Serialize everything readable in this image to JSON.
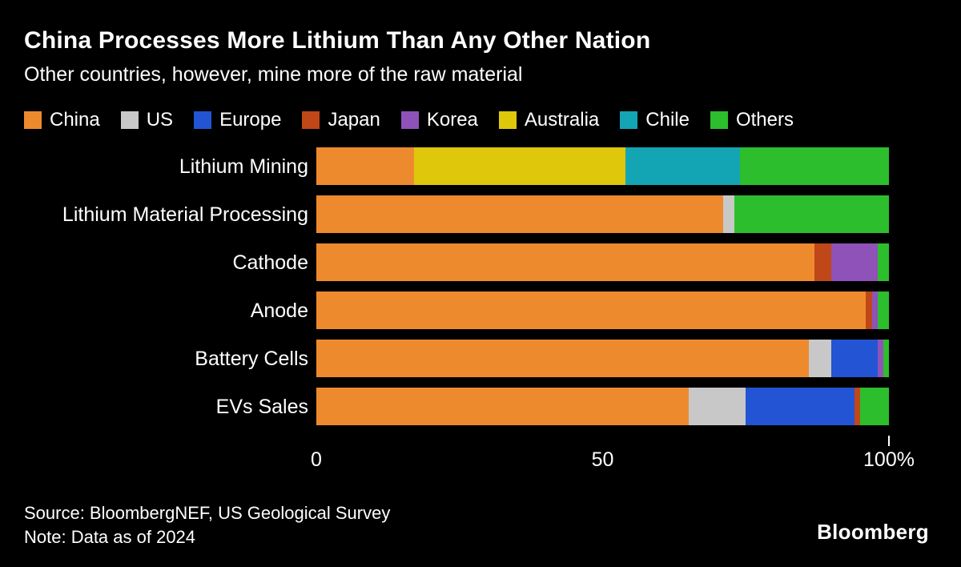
{
  "header": {
    "title": "China Processes More Lithium Than Any Other Nation",
    "subtitle": "Other countries, however, mine more of the raw material"
  },
  "footer": {
    "source": "Source: BloombergNEF, US Geological Survey",
    "note": "Note: Data as of 2024",
    "brand": "Bloomberg"
  },
  "chart_data": {
    "type": "bar",
    "orientation": "horizontal",
    "stacked": true,
    "unit": "percent",
    "xlim": [
      0,
      100
    ],
    "legend_position": "top",
    "grid": false,
    "categories": [
      "Lithium Mining",
      "Lithium Material Processing",
      "Cathode",
      "Anode",
      "Battery Cells",
      "EVs Sales"
    ],
    "series": [
      {
        "name": "China",
        "color": "#EE8A2E",
        "values": [
          17,
          71,
          87,
          96,
          86,
          65
        ]
      },
      {
        "name": "US",
        "color": "#C8C8C8",
        "values": [
          0,
          2,
          0,
          0,
          4,
          10
        ]
      },
      {
        "name": "Europe",
        "color": "#2254D4",
        "values": [
          0,
          0,
          0,
          0,
          8,
          19
        ]
      },
      {
        "name": "Japan",
        "color": "#BF4718",
        "values": [
          0,
          0,
          3,
          1,
          0,
          1
        ]
      },
      {
        "name": "Korea",
        "color": "#8F52B8",
        "values": [
          0,
          0,
          8,
          1,
          1,
          0
        ]
      },
      {
        "name": "Australia",
        "color": "#DFC70B",
        "values": [
          37,
          0,
          0,
          0,
          0,
          0
        ]
      },
      {
        "name": "Chile",
        "color": "#13A5B4",
        "values": [
          20,
          0,
          0,
          0,
          0,
          0
        ]
      },
      {
        "name": "Others",
        "color": "#2CBE2C",
        "values": [
          26,
          27,
          2,
          2,
          1,
          5
        ]
      }
    ],
    "x_ticks": [
      {
        "value": 0,
        "label": "0",
        "tick_mark": false
      },
      {
        "value": 50,
        "label": "50",
        "tick_mark": false
      },
      {
        "value": 100,
        "label": "100%",
        "tick_mark": true
      }
    ]
  }
}
